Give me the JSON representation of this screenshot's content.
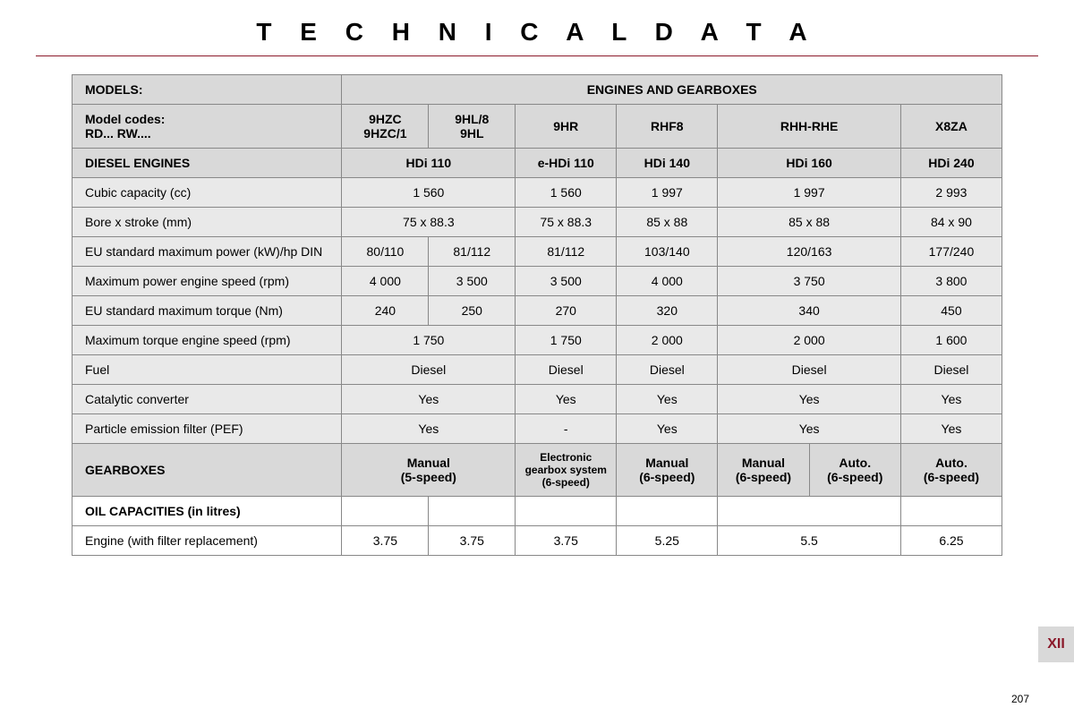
{
  "title": "T E C H N I C A L   D A T A",
  "models_label": "MODELS:",
  "engines_header": "ENGINES AND GEARBOXES",
  "model_codes_label": "Model codes:\nRD... RW....",
  "codes": [
    "9HZC\n9HZC/1",
    "9HL/8\n9HL",
    "9HR",
    "RHF8",
    "RHH-RHE",
    "X8ZA"
  ],
  "diesel_label": "DIESEL ENGINES",
  "diesel_names": [
    "HDi 110",
    "e-HDi 110",
    "HDi 140",
    "HDi 160",
    "HDi 240"
  ],
  "rows": {
    "cc": {
      "label": "Cubic capacity (cc)",
      "v": [
        "1 560",
        "1 560",
        "1 997",
        "1 997",
        "2 993"
      ]
    },
    "bore": {
      "label": "Bore x stroke (mm)",
      "v": [
        "75 x 88.3",
        "75 x 88.3",
        "85 x 88",
        "85 x 88",
        "84 x 90"
      ]
    },
    "pow": {
      "label": "EU standard maximum power (kW)/hp DIN",
      "split": [
        "80/110",
        "81/112"
      ],
      "v": [
        "81/112",
        "103/140",
        "120/163",
        "177/240"
      ]
    },
    "prpm": {
      "label": "Maximum power engine speed (rpm)",
      "split": [
        "4 000",
        "3 500"
      ],
      "v": [
        "3 500",
        "4 000",
        "3 750",
        "3 800"
      ]
    },
    "torq": {
      "label": "EU standard maximum torque (Nm)",
      "split": [
        "240",
        "250"
      ],
      "v": [
        "270",
        "320",
        "340",
        "450"
      ]
    },
    "trpm": {
      "label": "Maximum torque engine speed (rpm)",
      "v": [
        "1 750",
        "1 750",
        "2 000",
        "2 000",
        "1 600"
      ]
    },
    "fuel": {
      "label": "Fuel",
      "v": [
        "Diesel",
        "Diesel",
        "Diesel",
        "Diesel",
        "Diesel"
      ]
    },
    "cat": {
      "label": "Catalytic converter",
      "v": [
        "Yes",
        "Yes",
        "Yes",
        "Yes",
        "Yes"
      ]
    },
    "pef": {
      "label": "Particle emission filter (PEF)",
      "v": [
        "Yes",
        "-",
        "Yes",
        "Yes",
        "Yes"
      ]
    }
  },
  "gearbox_label": "GEARBOXES",
  "gearboxes": [
    "Manual\n(5-speed)",
    "Electronic gearbox system (6-speed)",
    "Manual\n(6-speed)",
    "Manual\n(6-speed)",
    "Auto.\n(6-speed)",
    "Auto.\n(6-speed)"
  ],
  "oil_label": "OIL CAPACITIES (in litres)",
  "oil_row_label": "Engine (with filter replacement)",
  "oil": [
    "3.75",
    "3.75",
    "3.75",
    "5.25",
    "5.5",
    "6.25"
  ],
  "section_tab": "XII",
  "page_number": "207",
  "colors": {
    "accent": "#8b1a2b",
    "header_bg": "#d9d9d9",
    "alt_bg": "#e9e9e9",
    "border": "#888888",
    "text": "#000000"
  }
}
